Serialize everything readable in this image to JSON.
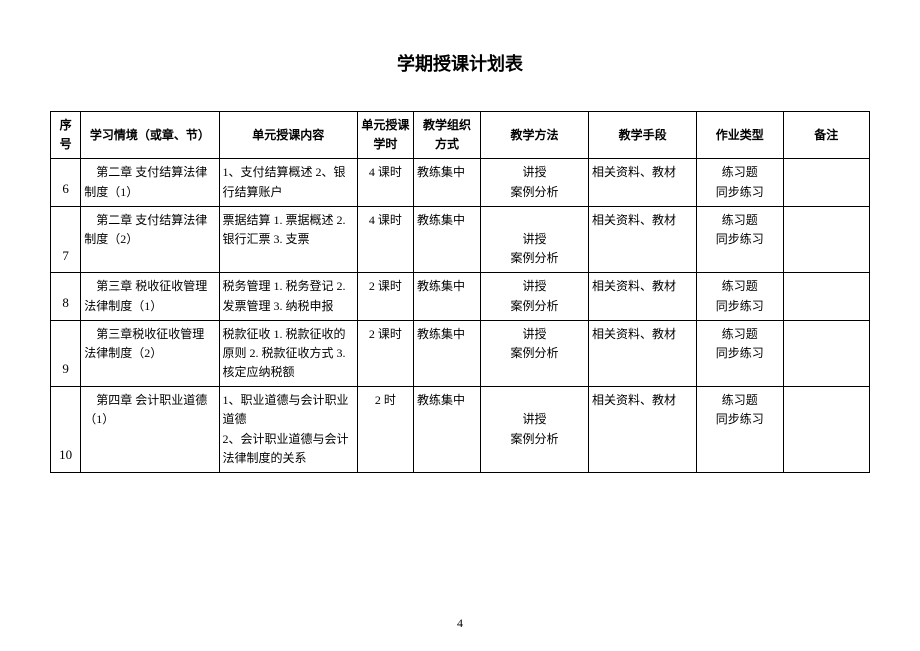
{
  "title": "学期授课计划表",
  "pageNumber": "4",
  "headers": {
    "seq": "序号",
    "context": "学习情境（或章、节）",
    "content": "单元授课内容",
    "hours": "单元授课学时",
    "org": "教学组织方式",
    "method": "教学方法",
    "means": "教学手段",
    "homework": "作业类型",
    "remark": "备注"
  },
  "rows": [
    {
      "seq": "6",
      "context": "第二章 支付结算法律制度（1）",
      "content": "1、支付结算概述 2、银行结算账户",
      "hours": "4 课时",
      "org": "教练集中",
      "method1": "讲授",
      "method2": "案例分析",
      "means": "相关资料、教材",
      "homework1": "练习题",
      "homework2": "同步练习",
      "remark": ""
    },
    {
      "seq": "7",
      "context": "第二章 支付结算法律制度（2）",
      "content": "票据结算 1. 票据概述 2. 银行汇票 3. 支票",
      "hours": "4 课时",
      "org": "教练集中",
      "method1": "讲授",
      "method2": "案例分析",
      "means": "相关资料、教材",
      "homework1": "练习题",
      "homework2": "同步练习",
      "remark": ""
    },
    {
      "seq": "8",
      "context": "第三章 税收征收管理法律制度（1）",
      "content": "税务管理 1. 税务登记 2. 发票管理 3. 纳税申报",
      "hours": "2 课时",
      "org": "教练集中",
      "method1": "讲授",
      "method2": "案例分析",
      "means": "相关资料、教材",
      "homework1": "练习题",
      "homework2": "同步练习",
      "remark": ""
    },
    {
      "seq": "9",
      "context": "第三章税收征收管理法律制度（2）",
      "content": "税款征收 1. 税款征收的原则 2. 税款征收方式 3. 核定应纳税额",
      "hours": "2 课时",
      "org": "教练集中",
      "method1": "讲授",
      "method2": "案例分析",
      "means": "相关资料、教材",
      "homework1": "练习题",
      "homework2": "同步练习",
      "remark": ""
    },
    {
      "seq": "10",
      "context": "第四章 会计职业道德（1）",
      "content": "1、职业道德与会计职业道德\n2、会计职业道德与会计法律制度的关系",
      "hours": "2 时",
      "org": "教练集中",
      "method1": "讲授",
      "method2": "案例分析",
      "means": "相关资料、教材",
      "homework1": "练习题",
      "homework2": "同步练习",
      "remark": ""
    }
  ]
}
